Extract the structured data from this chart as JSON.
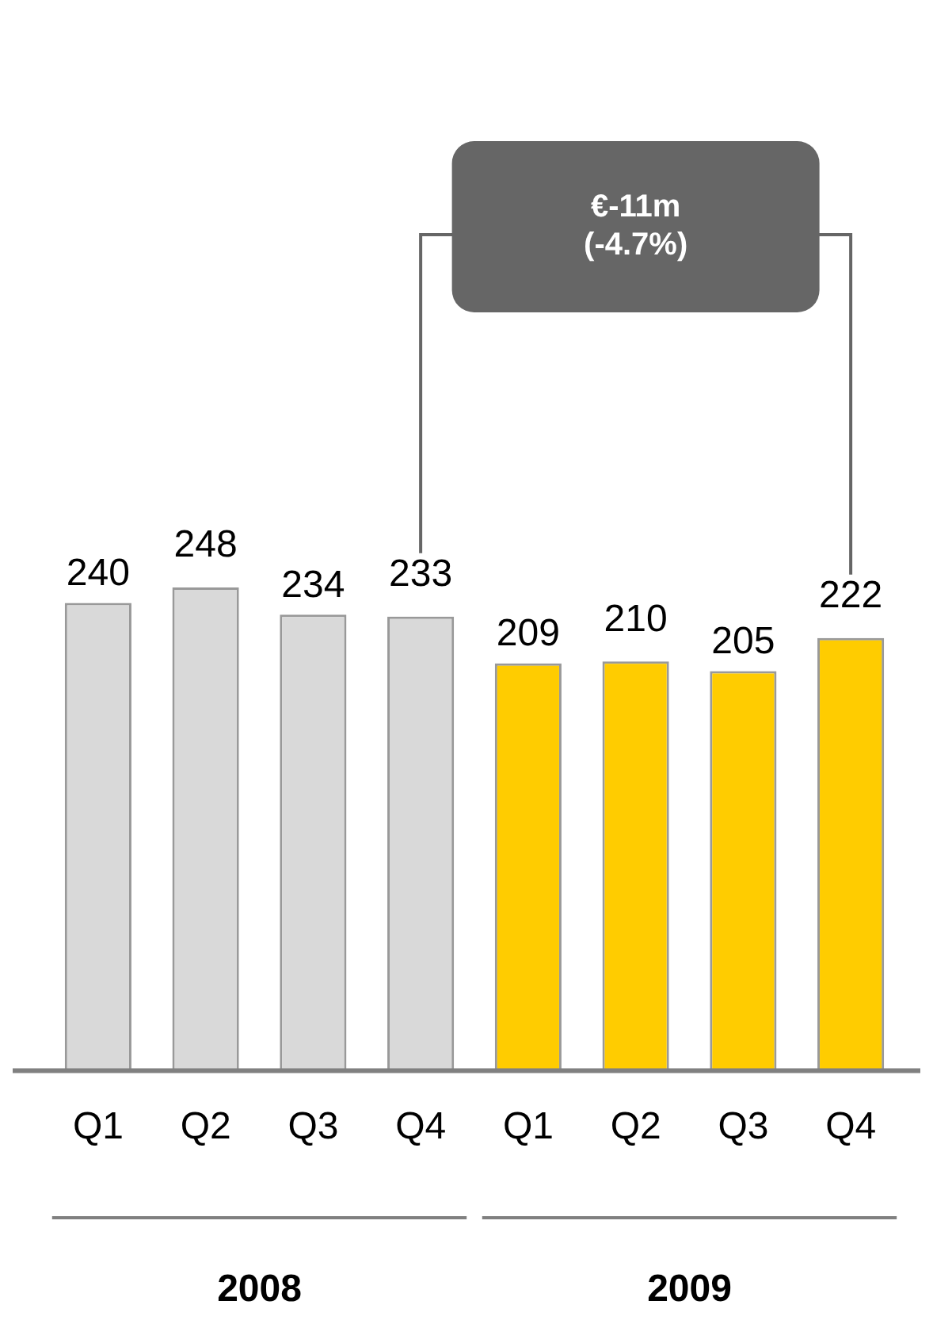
{
  "chart_data": {
    "type": "bar",
    "categories": [
      "Q1",
      "Q2",
      "Q3",
      "Q4",
      "Q1",
      "Q2",
      "Q3",
      "Q4"
    ],
    "values": [
      240,
      248,
      234,
      233,
      209,
      210,
      205,
      222
    ],
    "colors": [
      "#d9d9d9",
      "#d9d9d9",
      "#d9d9d9",
      "#d9d9d9",
      "#ffcc00",
      "#ffcc00",
      "#ffcc00",
      "#ffcc00"
    ],
    "data_labels": true,
    "grid": false,
    "legend": false,
    "annotations": [
      "€-11m\n(-4.7%)",
      "2008",
      "2009"
    ]
  }
}
